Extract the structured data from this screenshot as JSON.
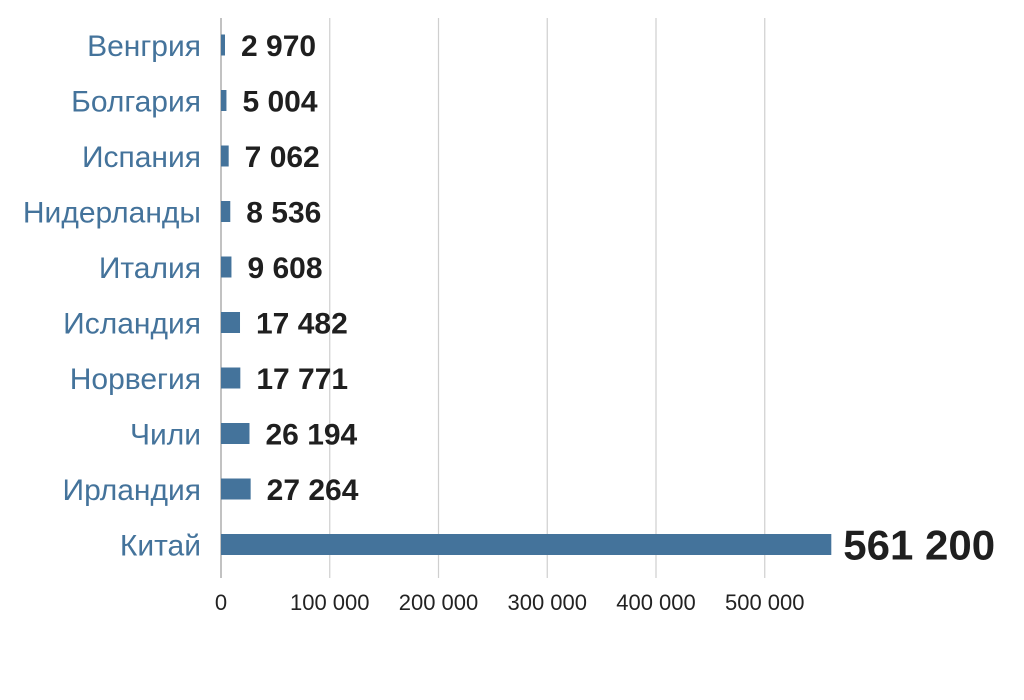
{
  "chart_data": {
    "type": "bar",
    "orientation": "horizontal",
    "categories": [
      "Венгрия",
      "Болгария",
      "Испания",
      "Нидерланды",
      "Италия",
      "Исландия",
      "Норвегия",
      "Чили",
      "Ирландия",
      "Китай"
    ],
    "values": [
      2970,
      5004,
      7062,
      8536,
      9608,
      17482,
      17771,
      26194,
      27264,
      561200
    ],
    "value_labels": [
      "2 970",
      "5 004",
      "7 062",
      "8 536",
      "9 608",
      "17 482",
      "17 771",
      "26 194",
      "27 264",
      "561 200"
    ],
    "x_ticks": [
      0,
      100000,
      200000,
      300000,
      400000,
      500000
    ],
    "x_tick_labels": [
      "0",
      "100 000",
      "200 000",
      "300 000",
      "400 000",
      "500 000"
    ],
    "xlim": [
      0,
      561200
    ],
    "title": "",
    "xlabel": "",
    "ylabel": "",
    "grid": "vertical",
    "legend": "none",
    "colors": {
      "bar": "#44739b",
      "category_text": "#44739b",
      "value_text": "#1f1f1f",
      "gridline": "#cfcfcf"
    }
  }
}
